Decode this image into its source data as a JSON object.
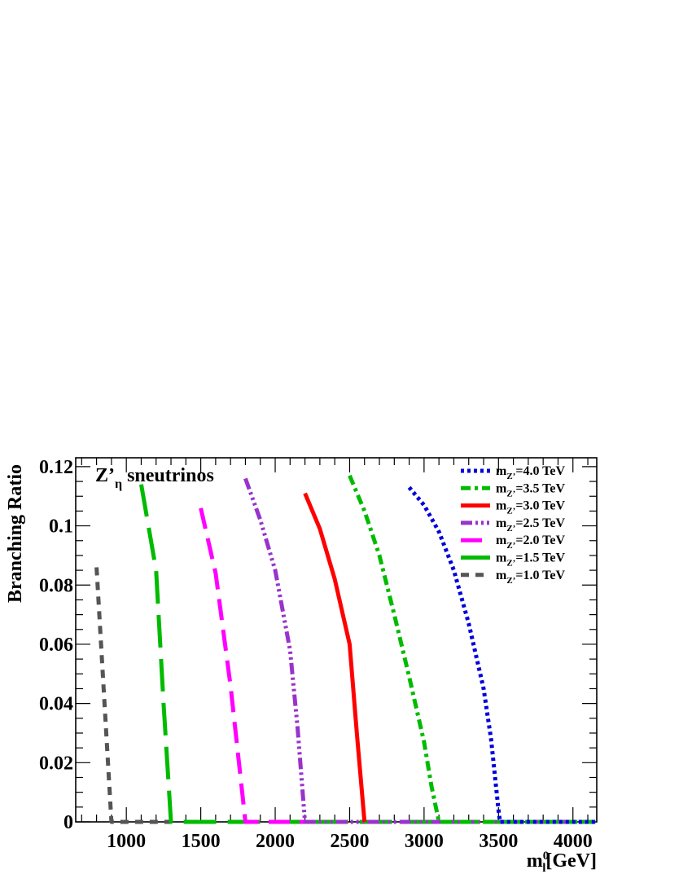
{
  "chart_data": {
    "type": "line",
    "annotation": "Z’",
    "annotation_sub": "η",
    "annotation_suffix": " sneutrinos",
    "ylabel": "Branching Ratio",
    "xlabel_main": "m",
    "xlabel_sub": "l",
    "xlabel_sup": "0",
    "xlabel_unit": "[GeV]",
    "xlim": [
      660,
      4160
    ],
    "ylim": [
      0,
      0.123
    ],
    "xticks": [
      1000,
      1500,
      2000,
      2500,
      3000,
      3500,
      4000
    ],
    "xtick_labels": [
      "1000",
      "1500",
      "2000",
      "2500",
      "3000",
      "3500",
      "4000"
    ],
    "yticks": [
      0,
      0.02,
      0.04,
      0.06,
      0.08,
      0.1,
      0.12
    ],
    "ytick_labels": [
      "0",
      "0.02",
      "0.04",
      "0.06",
      "0.08",
      "0.1",
      "0.12"
    ],
    "grid": false,
    "legend_position": "top-right",
    "legend_prefix": "m",
    "legend_sub": "Z’",
    "series": [
      {
        "name": "=4.0 TeV",
        "color": "#0000dd",
        "dash": "dot",
        "x": [
          2900,
          3000,
          3100,
          3200,
          3300,
          3400,
          3450,
          3500,
          3510,
          4150
        ],
        "y": [
          0.113,
          0.107,
          0.098,
          0.085,
          0.067,
          0.045,
          0.028,
          0.004,
          0,
          0
        ]
      },
      {
        "name": "=3.5 TeV",
        "color": "#00bb00",
        "dash": "dashdot",
        "x": [
          2500,
          2600,
          2700,
          2800,
          2900,
          3000,
          3050,
          3100,
          4150
        ],
        "y": [
          0.117,
          0.105,
          0.09,
          0.07,
          0.049,
          0.027,
          0.012,
          0,
          0
        ]
      },
      {
        "name": "=3.0 TeV",
        "color": "#ff0000",
        "dash": "solid",
        "x": [
          2200,
          2300,
          2400,
          2500,
          2550,
          2600
        ],
        "y": [
          0.111,
          0.099,
          0.082,
          0.06,
          0.029,
          0
        ]
      },
      {
        "name": "=2.5 TeV",
        "color": "#9933cc",
        "dash": "dashdotdotdot",
        "x": [
          1800,
          1900,
          2000,
          2100,
          2150,
          2200,
          4150
        ],
        "y": [
          0.116,
          0.102,
          0.085,
          0.058,
          0.032,
          0,
          0
        ]
      },
      {
        "name": "=2.0 TeV",
        "color": "#ff00ff",
        "dash": "longdash",
        "x": [
          1500,
          1600,
          1700,
          1800,
          2200
        ],
        "y": [
          0.106,
          0.084,
          0.046,
          0,
          0
        ]
      },
      {
        "name": "=1.5 TeV",
        "color": "#00bb00",
        "dash": "verylongdash",
        "x": [
          1100,
          1200,
          1250,
          1300,
          4150
        ],
        "y": [
          0.114,
          0.085,
          0.04,
          0,
          0
        ]
      },
      {
        "name": "=1.0 TeV",
        "color": "#555555",
        "dash": "shortdash",
        "x": [
          800,
          900,
          1300
        ],
        "y": [
          0.086,
          0,
          0
        ]
      }
    ]
  }
}
